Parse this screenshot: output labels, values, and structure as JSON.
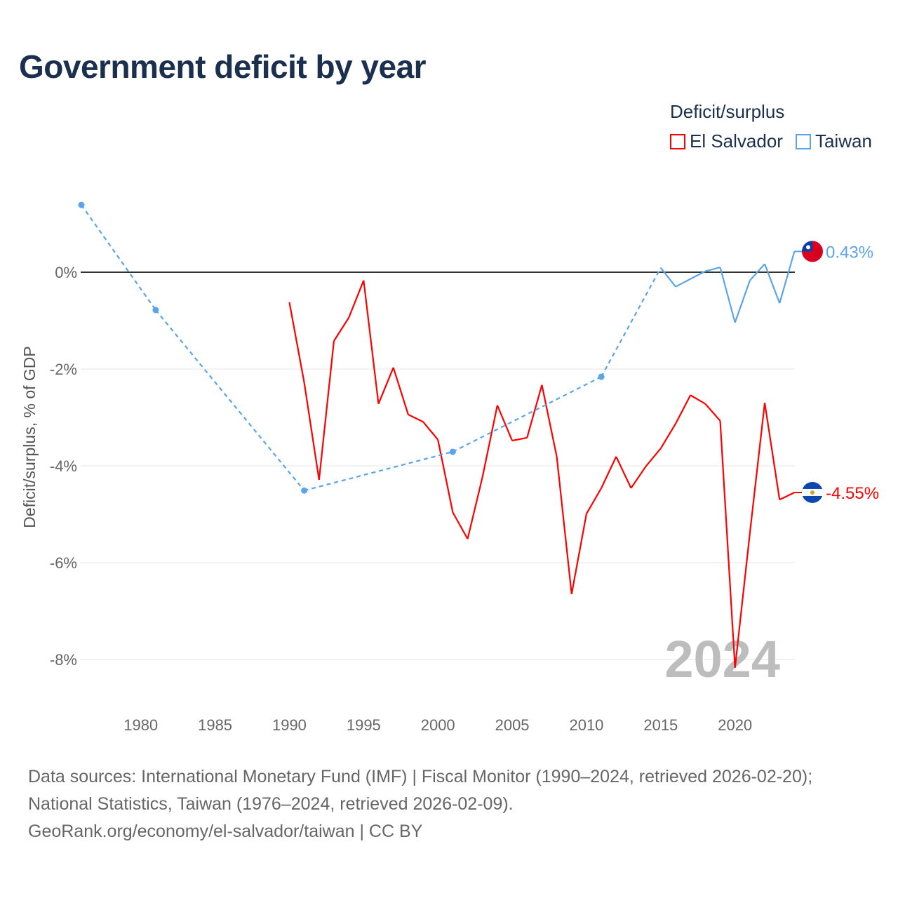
{
  "title": "Government deficit by year",
  "legend": {
    "title": "Deficit/surplus",
    "items": [
      {
        "label": "El Salvador",
        "color": "#ff0000"
      },
      {
        "label": "Taiwan",
        "color": "#5ba4ea"
      }
    ]
  },
  "footer": {
    "line1": "Data sources: International Monetary Fund (IMF) | Fiscal Monitor (1990–2024, retrieved 2026-02-20);",
    "line2": "National Statistics, Taiwan (1976–2024, retrieved 2026-02-09).",
    "line3": "GeoRank.org/economy/el-salvador/taiwan | CC BY"
  },
  "chart_data": {
    "type": "line",
    "title": "Government deficit by year",
    "xlabel": "",
    "ylabel": "Deficit/surplus, % of GDP",
    "xlim": [
      1976,
      2024
    ],
    "ylim": [
      -9,
      1.6
    ],
    "x_ticks": [
      1980,
      1985,
      1990,
      1995,
      2000,
      2005,
      2010,
      2015,
      2020
    ],
    "y_ticks": [
      0,
      -2,
      -4,
      -6,
      -8
    ],
    "y_tick_labels": [
      "0%",
      "-2%",
      "-4%",
      "-6%",
      "-8%"
    ],
    "year_watermark": "2024",
    "series": [
      {
        "name": "El Salvador",
        "color": "#ff0000",
        "end_label": "-4.55%",
        "points": [
          [
            1990,
            -0.62
          ],
          [
            1991,
            -2.28
          ],
          [
            1992,
            -4.29
          ],
          [
            1993,
            -1.42
          ],
          [
            1994,
            -0.94
          ],
          [
            1995,
            -0.17
          ],
          [
            1996,
            -2.72
          ],
          [
            1997,
            -1.97
          ],
          [
            1998,
            -2.94
          ],
          [
            1999,
            -3.09
          ],
          [
            2000,
            -3.46
          ],
          [
            2001,
            -4.96
          ],
          [
            2002,
            -5.51
          ],
          [
            2003,
            -4.23
          ],
          [
            2004,
            -2.75
          ],
          [
            2005,
            -3.48
          ],
          [
            2006,
            -3.42
          ],
          [
            2007,
            -2.33
          ],
          [
            2008,
            -3.81
          ],
          [
            2009,
            -6.65
          ],
          [
            2010,
            -4.99
          ],
          [
            2011,
            -4.46
          ],
          [
            2012,
            -3.81
          ],
          [
            2013,
            -4.46
          ],
          [
            2014,
            -4.01
          ],
          [
            2015,
            -3.64
          ],
          [
            2016,
            -3.13
          ],
          [
            2017,
            -2.54
          ],
          [
            2018,
            -2.72
          ],
          [
            2019,
            -3.07
          ],
          [
            2020,
            -8.17
          ],
          [
            2021,
            -5.39
          ],
          [
            2022,
            -2.7
          ],
          [
            2023,
            -4.7
          ],
          [
            2024,
            -4.55
          ]
        ]
      },
      {
        "name": "Taiwan",
        "color": "#5ba4ea",
        "end_label": "0.43%",
        "points": [
          [
            1976,
            1.39
          ],
          [
            1981,
            -0.78
          ],
          [
            1991,
            -4.51
          ],
          [
            2001,
            -3.71
          ],
          [
            2011,
            -2.16
          ],
          [
            2015,
            0.09
          ],
          [
            2016,
            -0.3
          ],
          [
            2017,
            -0.14
          ],
          [
            2018,
            0.02
          ],
          [
            2019,
            0.1
          ],
          [
            2020,
            -1.04
          ],
          [
            2021,
            -0.17
          ],
          [
            2022,
            0.17
          ],
          [
            2023,
            -0.64
          ],
          [
            2024,
            0.43
          ]
        ]
      }
    ]
  }
}
